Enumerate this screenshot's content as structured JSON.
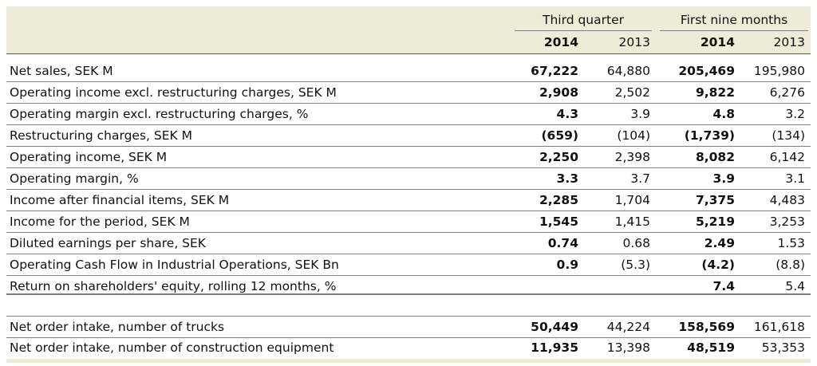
{
  "chart_data": {
    "type": "table",
    "group_headers": [
      "Third quarter",
      "First nine months"
    ],
    "column_years": [
      "2014",
      "2013",
      "2014",
      "2013"
    ],
    "rows_section1": [
      {
        "label": "Net sales, SEK M",
        "values": [
          "67,222",
          "64,880",
          "205,469",
          "195,980"
        ]
      },
      {
        "label": "Operating income excl. restructuring charges, SEK M",
        "values": [
          "2,908",
          "2,502",
          "9,822",
          "6,276"
        ]
      },
      {
        "label": "Operating margin excl. restructuring charges, %",
        "values": [
          "4.3",
          "3.9",
          "4.8",
          "3.2"
        ]
      },
      {
        "label": "Restructuring charges, SEK M",
        "values": [
          "(659)",
          "(104)",
          "(1,739)",
          "(134)"
        ]
      },
      {
        "label": "Operating income, SEK M",
        "values": [
          "2,250",
          "2,398",
          "8,082",
          "6,142"
        ]
      },
      {
        "label": "Operating margin, %",
        "values": [
          "3.3",
          "3.7",
          "3.9",
          "3.1"
        ]
      },
      {
        "label": "Income after financial items, SEK M",
        "values": [
          "2,285",
          "1,704",
          "7,375",
          "4,483"
        ]
      },
      {
        "label": "Income for the period, SEK M",
        "values": [
          "1,545",
          "1,415",
          "5,219",
          "3,253"
        ]
      },
      {
        "label": "Diluted earnings per share, SEK",
        "values": [
          "0.74",
          "0.68",
          "2.49",
          "1.53"
        ]
      },
      {
        "label": "Operating Cash Flow in Industrial Operations, SEK Bn",
        "values": [
          "0.9",
          "(5.3)",
          "(4.2)",
          "(8.8)"
        ]
      },
      {
        "label": "Return on shareholders' equity, rolling 12 months, %",
        "values": [
          "",
          "",
          "7.4",
          "5.4"
        ]
      }
    ],
    "rows_section2": [
      {
        "label": "Net order intake, number of trucks",
        "values": [
          "50,449",
          "44,224",
          "158,569",
          "161,618"
        ]
      },
      {
        "label": "Net order intake, number of construction equipment",
        "values": [
          "11,935",
          "13,398",
          "48,519",
          "53,353"
        ]
      }
    ],
    "bold_columns": [
      0,
      2
    ],
    "colors": {
      "header_band": "#eeecd6",
      "rule": "#7f7f7f",
      "text": "#111111"
    }
  }
}
